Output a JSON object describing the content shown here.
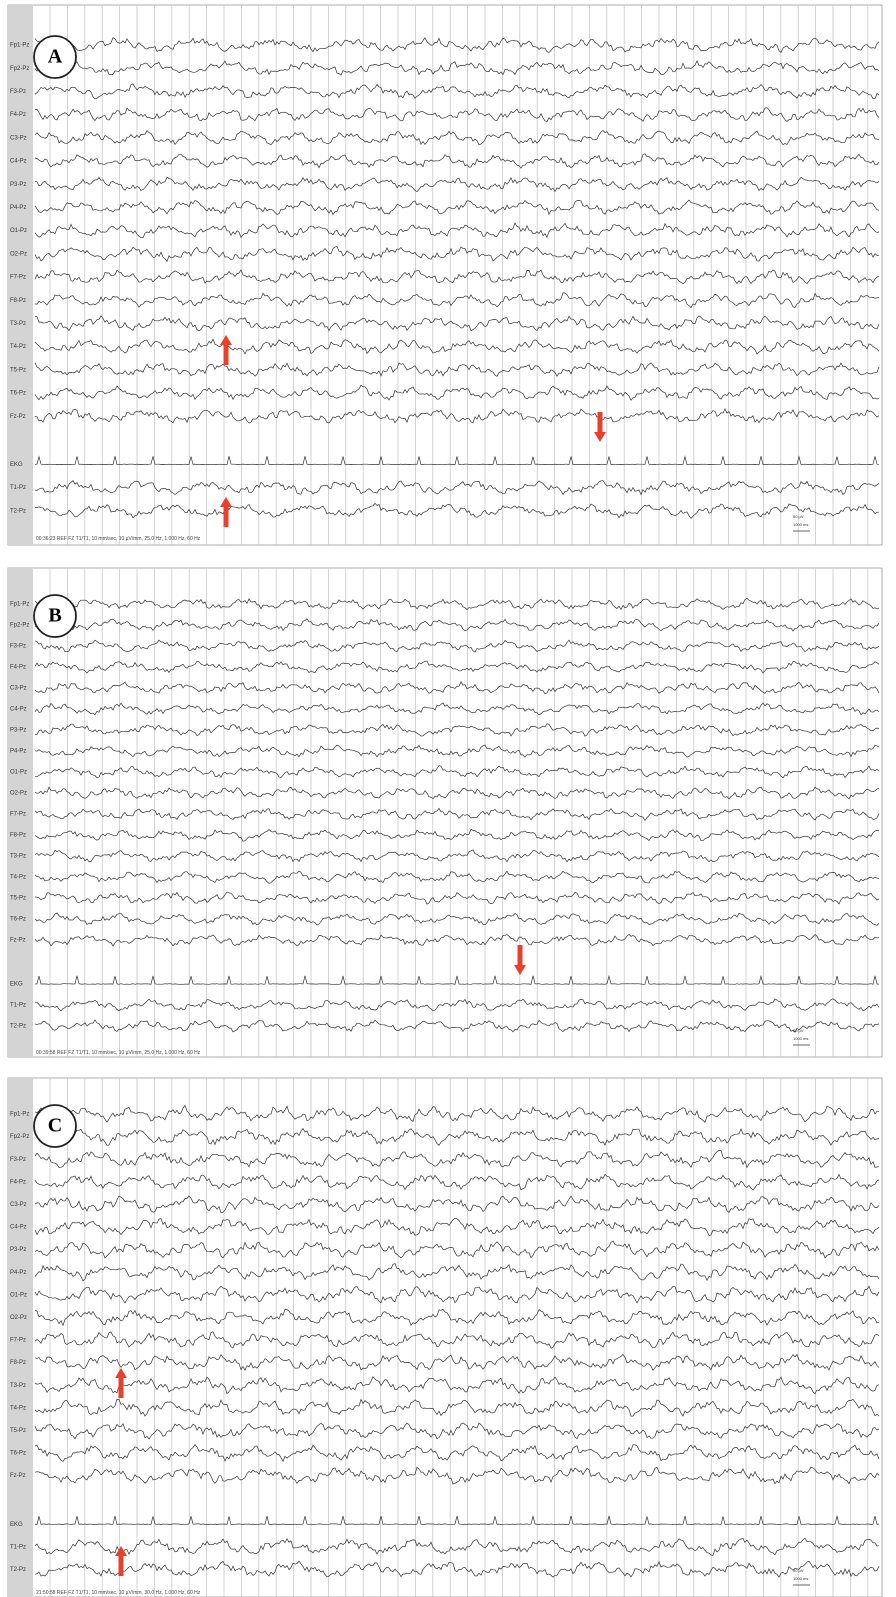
{
  "panels": [
    {
      "label": "A",
      "channels": [
        "Fp1-Pz",
        "Fp2-Pz",
        "F3-Pz",
        "F4-Pz",
        "C3-Pz",
        "C4-Pz",
        "P3-Pz",
        "P4-Pz",
        "O1-Pz",
        "O2-Pz",
        "F7-Pz",
        "F8-Pz",
        "T3-Pz",
        "T4-Pz",
        "T5-Pz",
        "T6-Pz",
        "Fz-Pz",
        "EKG",
        "T1-Pz",
        "T2-Pz"
      ],
      "footer": "00:36:23 REF FZ T1/T1, 10 mm/sec, 10 µV/mm, 25.0 Hz, 1.000 Hz, 60 Hz",
      "scale": [
        "50 µV",
        "1000 ms"
      ]
    },
    {
      "label": "B",
      "channels": [
        "Fp1-Pz",
        "Fp2-Pz",
        "F3-Pz",
        "F4-Pz",
        "C3-Pz",
        "C4-Pz",
        "P3-Pz",
        "P4-Pz",
        "O1-Pz",
        "O2-Pz",
        "F7-Pz",
        "F8-Pz",
        "T3-Pz",
        "T4-Pz",
        "T5-Pz",
        "T6-Pz",
        "Fz-Pz",
        "EKG",
        "T1-Pz",
        "T2-Pz"
      ],
      "footer": "00:39:58 REF FZ T1/T1, 10 mm/sec, 10 µV/mm, 25.0 Hz, 1.000 Hz, 60 Hz",
      "scale": [
        "50 µV",
        "1000 ms"
      ]
    },
    {
      "label": "C",
      "channels": [
        "Fp1-Pz",
        "Fp2-Pz",
        "F3-Pz",
        "F4-Pz",
        "C3-Pz",
        "C4-Pz",
        "P3-Pz",
        "P4-Pz",
        "O1-Pz",
        "O2-Pz",
        "F7-Pz",
        "F8-Pz",
        "T3-Pz",
        "T4-Pz",
        "T5-Pz",
        "T6-Pz",
        "Fz-Pz",
        "EKG",
        "T1-Pz",
        "T2-Pz"
      ],
      "footer": "21:50:58 REF FZ T1/T1, 10 mm/sec, 10 µV/mm, 30.0 Hz, 1.000 Hz, 60 Hz",
      "scale": [
        "50 µV",
        "1000 ms"
      ]
    }
  ]
}
